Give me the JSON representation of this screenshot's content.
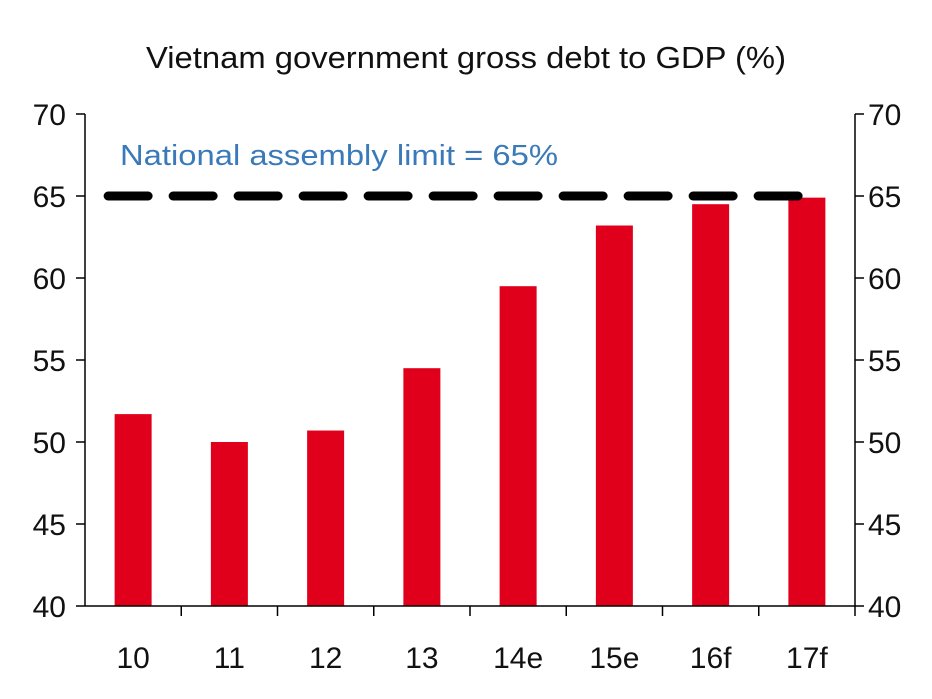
{
  "chart_data": {
    "type": "bar",
    "title": "Vietnam government gross debt to GDP (%)",
    "categories": [
      "10",
      "11",
      "12",
      "13",
      "14e",
      "15e",
      "16f",
      "17f"
    ],
    "values": [
      51.7,
      50.0,
      50.7,
      54.5,
      59.5,
      63.2,
      64.5,
      64.9
    ],
    "ylim": [
      40,
      70
    ],
    "yticks": [
      40,
      45,
      50,
      55,
      60,
      65,
      70
    ],
    "secondary_y_axis": true,
    "grid": false,
    "bar_color": "#e0001b",
    "reference_line": {
      "value": 65,
      "label": "National assembly limit = 65%",
      "style": "dashed",
      "color": "#000000",
      "label_color": "#3a7ab8"
    }
  }
}
